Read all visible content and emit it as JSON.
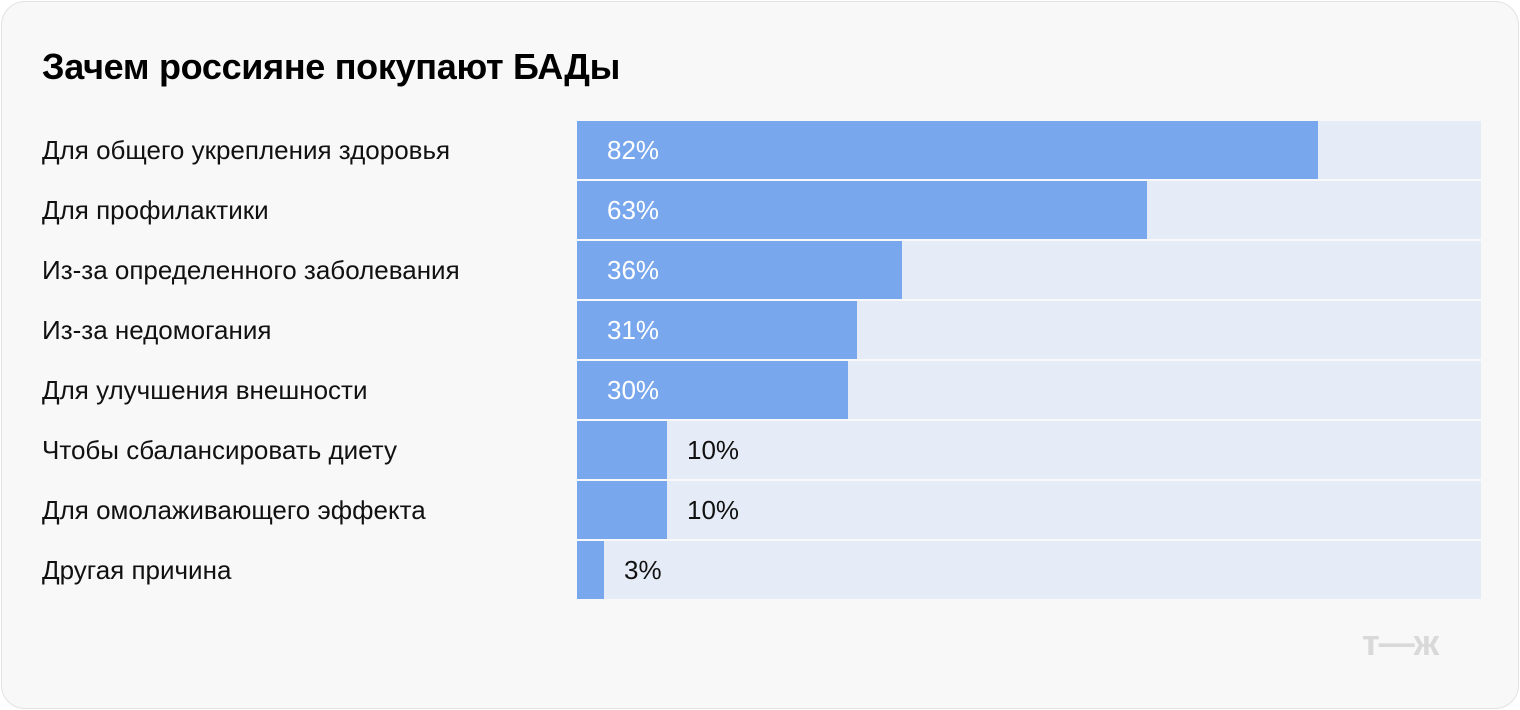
{
  "chart_data": {
    "type": "bar",
    "orientation": "horizontal",
    "title": "Зачем россияне покупают БАДы",
    "categories": [
      "Для общего укрепления здоровья",
      "Для профилактики",
      "Из-за определенного заболевания",
      "Из-за недомогания",
      "Для улучшения внешности",
      "Чтобы сбалансировать диету",
      "Для омолаживающего эффекта",
      "Другая причина"
    ],
    "values": [
      82,
      63,
      36,
      31,
      30,
      10,
      10,
      3
    ],
    "value_labels": [
      "82%",
      "63%",
      "36%",
      "31%",
      "30%",
      "10%",
      "10%",
      "3%"
    ],
    "xlim": [
      0,
      100
    ],
    "grid": false,
    "colors": {
      "bar": "#78a7ee",
      "track": "#e6ecf7",
      "background": "#f8f8f8"
    }
  },
  "logo": "т—ж"
}
